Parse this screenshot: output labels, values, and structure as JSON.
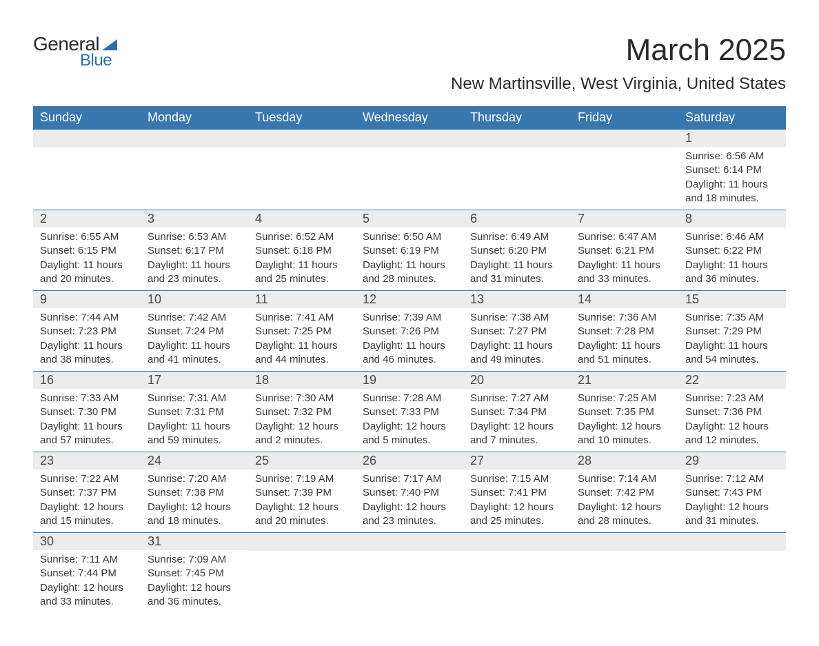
{
  "brand": {
    "part1": "General",
    "part2": "Blue"
  },
  "title": "March 2025",
  "location": "New Martinsville, West Virginia, United States",
  "colors": {
    "header_bg": "#3876ae",
    "header_text": "#ffffff",
    "daynum_bg": "#ececec",
    "border": "#3876ae",
    "body_text": "#3a3a3a",
    "brand_blue": "#2f6da8"
  },
  "weekdays": [
    "Sunday",
    "Monday",
    "Tuesday",
    "Wednesday",
    "Thursday",
    "Friday",
    "Saturday"
  ],
  "weeks": [
    [
      {
        "day": "",
        "lines": [
          "",
          "",
          "",
          ""
        ]
      },
      {
        "day": "",
        "lines": [
          "",
          "",
          "",
          ""
        ]
      },
      {
        "day": "",
        "lines": [
          "",
          "",
          "",
          ""
        ]
      },
      {
        "day": "",
        "lines": [
          "",
          "",
          "",
          ""
        ]
      },
      {
        "day": "",
        "lines": [
          "",
          "",
          "",
          ""
        ]
      },
      {
        "day": "",
        "lines": [
          "",
          "",
          "",
          ""
        ]
      },
      {
        "day": "1",
        "lines": [
          "Sunrise: 6:56 AM",
          "Sunset: 6:14 PM",
          "Daylight: 11 hours",
          "and 18 minutes."
        ]
      }
    ],
    [
      {
        "day": "2",
        "lines": [
          "Sunrise: 6:55 AM",
          "Sunset: 6:15 PM",
          "Daylight: 11 hours",
          "and 20 minutes."
        ]
      },
      {
        "day": "3",
        "lines": [
          "Sunrise: 6:53 AM",
          "Sunset: 6:17 PM",
          "Daylight: 11 hours",
          "and 23 minutes."
        ]
      },
      {
        "day": "4",
        "lines": [
          "Sunrise: 6:52 AM",
          "Sunset: 6:18 PM",
          "Daylight: 11 hours",
          "and 25 minutes."
        ]
      },
      {
        "day": "5",
        "lines": [
          "Sunrise: 6:50 AM",
          "Sunset: 6:19 PM",
          "Daylight: 11 hours",
          "and 28 minutes."
        ]
      },
      {
        "day": "6",
        "lines": [
          "Sunrise: 6:49 AM",
          "Sunset: 6:20 PM",
          "Daylight: 11 hours",
          "and 31 minutes."
        ]
      },
      {
        "day": "7",
        "lines": [
          "Sunrise: 6:47 AM",
          "Sunset: 6:21 PM",
          "Daylight: 11 hours",
          "and 33 minutes."
        ]
      },
      {
        "day": "8",
        "lines": [
          "Sunrise: 6:46 AM",
          "Sunset: 6:22 PM",
          "Daylight: 11 hours",
          "and 36 minutes."
        ]
      }
    ],
    [
      {
        "day": "9",
        "lines": [
          "Sunrise: 7:44 AM",
          "Sunset: 7:23 PM",
          "Daylight: 11 hours",
          "and 38 minutes."
        ]
      },
      {
        "day": "10",
        "lines": [
          "Sunrise: 7:42 AM",
          "Sunset: 7:24 PM",
          "Daylight: 11 hours",
          "and 41 minutes."
        ]
      },
      {
        "day": "11",
        "lines": [
          "Sunrise: 7:41 AM",
          "Sunset: 7:25 PM",
          "Daylight: 11 hours",
          "and 44 minutes."
        ]
      },
      {
        "day": "12",
        "lines": [
          "Sunrise: 7:39 AM",
          "Sunset: 7:26 PM",
          "Daylight: 11 hours",
          "and 46 minutes."
        ]
      },
      {
        "day": "13",
        "lines": [
          "Sunrise: 7:38 AM",
          "Sunset: 7:27 PM",
          "Daylight: 11 hours",
          "and 49 minutes."
        ]
      },
      {
        "day": "14",
        "lines": [
          "Sunrise: 7:36 AM",
          "Sunset: 7:28 PM",
          "Daylight: 11 hours",
          "and 51 minutes."
        ]
      },
      {
        "day": "15",
        "lines": [
          "Sunrise: 7:35 AM",
          "Sunset: 7:29 PM",
          "Daylight: 11 hours",
          "and 54 minutes."
        ]
      }
    ],
    [
      {
        "day": "16",
        "lines": [
          "Sunrise: 7:33 AM",
          "Sunset: 7:30 PM",
          "Daylight: 11 hours",
          "and 57 minutes."
        ]
      },
      {
        "day": "17",
        "lines": [
          "Sunrise: 7:31 AM",
          "Sunset: 7:31 PM",
          "Daylight: 11 hours",
          "and 59 minutes."
        ]
      },
      {
        "day": "18",
        "lines": [
          "Sunrise: 7:30 AM",
          "Sunset: 7:32 PM",
          "Daylight: 12 hours",
          "and 2 minutes."
        ]
      },
      {
        "day": "19",
        "lines": [
          "Sunrise: 7:28 AM",
          "Sunset: 7:33 PM",
          "Daylight: 12 hours",
          "and 5 minutes."
        ]
      },
      {
        "day": "20",
        "lines": [
          "Sunrise: 7:27 AM",
          "Sunset: 7:34 PM",
          "Daylight: 12 hours",
          "and 7 minutes."
        ]
      },
      {
        "day": "21",
        "lines": [
          "Sunrise: 7:25 AM",
          "Sunset: 7:35 PM",
          "Daylight: 12 hours",
          "and 10 minutes."
        ]
      },
      {
        "day": "22",
        "lines": [
          "Sunrise: 7:23 AM",
          "Sunset: 7:36 PM",
          "Daylight: 12 hours",
          "and 12 minutes."
        ]
      }
    ],
    [
      {
        "day": "23",
        "lines": [
          "Sunrise: 7:22 AM",
          "Sunset: 7:37 PM",
          "Daylight: 12 hours",
          "and 15 minutes."
        ]
      },
      {
        "day": "24",
        "lines": [
          "Sunrise: 7:20 AM",
          "Sunset: 7:38 PM",
          "Daylight: 12 hours",
          "and 18 minutes."
        ]
      },
      {
        "day": "25",
        "lines": [
          "Sunrise: 7:19 AM",
          "Sunset: 7:39 PM",
          "Daylight: 12 hours",
          "and 20 minutes."
        ]
      },
      {
        "day": "26",
        "lines": [
          "Sunrise: 7:17 AM",
          "Sunset: 7:40 PM",
          "Daylight: 12 hours",
          "and 23 minutes."
        ]
      },
      {
        "day": "27",
        "lines": [
          "Sunrise: 7:15 AM",
          "Sunset: 7:41 PM",
          "Daylight: 12 hours",
          "and 25 minutes."
        ]
      },
      {
        "day": "28",
        "lines": [
          "Sunrise: 7:14 AM",
          "Sunset: 7:42 PM",
          "Daylight: 12 hours",
          "and 28 minutes."
        ]
      },
      {
        "day": "29",
        "lines": [
          "Sunrise: 7:12 AM",
          "Sunset: 7:43 PM",
          "Daylight: 12 hours",
          "and 31 minutes."
        ]
      }
    ],
    [
      {
        "day": "30",
        "lines": [
          "Sunrise: 7:11 AM",
          "Sunset: 7:44 PM",
          "Daylight: 12 hours",
          "and 33 minutes."
        ]
      },
      {
        "day": "31",
        "lines": [
          "Sunrise: 7:09 AM",
          "Sunset: 7:45 PM",
          "Daylight: 12 hours",
          "and 36 minutes."
        ]
      },
      {
        "day": "",
        "lines": [
          "",
          "",
          "",
          ""
        ]
      },
      {
        "day": "",
        "lines": [
          "",
          "",
          "",
          ""
        ]
      },
      {
        "day": "",
        "lines": [
          "",
          "",
          "",
          ""
        ]
      },
      {
        "day": "",
        "lines": [
          "",
          "",
          "",
          ""
        ]
      },
      {
        "day": "",
        "lines": [
          "",
          "",
          "",
          ""
        ]
      }
    ]
  ]
}
